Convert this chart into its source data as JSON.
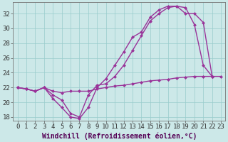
{
  "title": "",
  "xlabel": "Windchill (Refroidissement éolien,°C)",
  "ylabel": "",
  "background_color": "#cce8e8",
  "line_color": "#993399",
  "xlim": [
    -0.5,
    23.5
  ],
  "ylim": [
    17.5,
    33.5
  ],
  "xticks": [
    0,
    1,
    2,
    3,
    4,
    5,
    6,
    7,
    8,
    9,
    10,
    11,
    12,
    13,
    14,
    15,
    16,
    17,
    18,
    19,
    20,
    21,
    22,
    23
  ],
  "yticks": [
    18,
    20,
    22,
    24,
    26,
    28,
    30,
    32
  ],
  "line1_x": [
    0,
    1,
    2,
    3,
    4,
    5,
    6,
    7,
    8,
    9,
    10,
    11,
    12,
    13,
    14,
    15,
    16,
    17,
    18,
    19,
    20,
    21,
    22
  ],
  "line1_y": [
    22.0,
    21.8,
    21.5,
    22.0,
    20.5,
    19.3,
    18.0,
    17.8,
    19.3,
    22.0,
    23.2,
    25.0,
    26.8,
    28.8,
    29.5,
    31.5,
    32.5,
    33.0,
    33.0,
    32.8,
    30.5,
    25.0,
    23.5
  ],
  "line2_x": [
    0,
    1,
    2,
    3,
    4,
    5,
    6,
    7,
    8,
    9,
    10,
    11,
    12,
    13,
    14,
    15,
    16,
    17,
    18,
    19,
    20,
    21,
    22
  ],
  "line2_y": [
    22.0,
    21.8,
    21.5,
    22.0,
    21.0,
    20.3,
    18.5,
    18.0,
    21.0,
    22.3,
    22.5,
    23.5,
    25.0,
    27.0,
    29.0,
    31.0,
    32.0,
    32.8,
    33.0,
    32.0,
    32.0,
    30.8,
    23.5
  ],
  "line3_x": [
    0,
    1,
    2,
    3,
    4,
    5,
    6,
    7,
    8,
    9,
    10,
    11,
    12,
    13,
    14,
    15,
    16,
    17,
    18,
    19,
    20,
    21,
    22,
    23
  ],
  "line3_y": [
    22.0,
    21.8,
    21.5,
    22.0,
    21.5,
    21.3,
    21.5,
    21.5,
    21.5,
    21.8,
    22.0,
    22.2,
    22.3,
    22.5,
    22.7,
    22.9,
    23.0,
    23.1,
    23.3,
    23.4,
    23.5,
    23.5,
    23.5,
    23.5
  ],
  "grid_color": "#99cccc",
  "tick_fontsize": 6.5,
  "label_fontsize": 7,
  "marker": "D",
  "marker_size": 2.0,
  "line_width": 1.0
}
